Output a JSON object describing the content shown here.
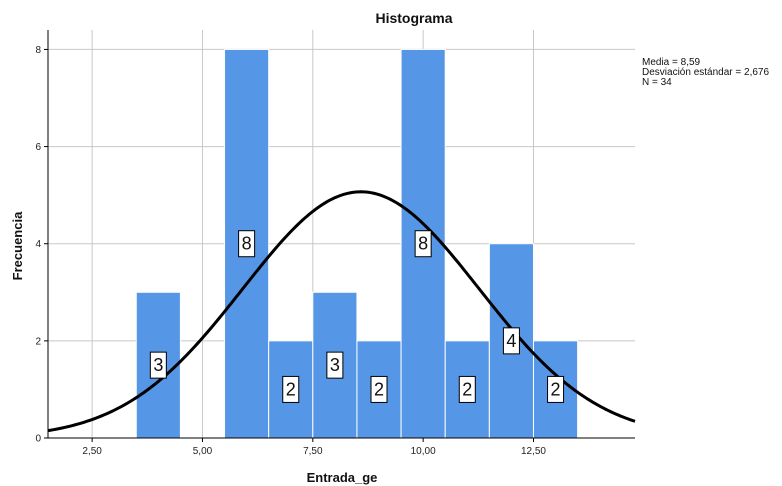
{
  "chart_data": {
    "type": "bar",
    "title": "Histograma",
    "xlabel": "Entrada_ge",
    "ylabel": "Frecuencia",
    "xlim": [
      1.5,
      14.8
    ],
    "ylim": [
      0,
      8.4
    ],
    "x_ticks": [
      {
        "value": 2.5,
        "label": "2,50"
      },
      {
        "value": 5.0,
        "label": "5,00"
      },
      {
        "value": 7.5,
        "label": "7,50"
      },
      {
        "value": 10.0,
        "label": "10,00"
      },
      {
        "value": 12.5,
        "label": "12,50"
      }
    ],
    "y_ticks": [
      {
        "value": 0,
        "label": "0"
      },
      {
        "value": 2,
        "label": "2"
      },
      {
        "value": 4,
        "label": "4"
      },
      {
        "value": 6,
        "label": "6"
      },
      {
        "value": 8,
        "label": "8"
      }
    ],
    "bins": [
      {
        "start": 3.5,
        "end": 4.5,
        "value": 3,
        "label": "3"
      },
      {
        "start": 5.5,
        "end": 6.5,
        "value": 8,
        "label": "8"
      },
      {
        "start": 6.5,
        "end": 7.5,
        "value": 2,
        "label": "2"
      },
      {
        "start": 7.5,
        "end": 8.5,
        "value": 3,
        "label": "3"
      },
      {
        "start": 8.5,
        "end": 9.5,
        "value": 2,
        "label": "2"
      },
      {
        "start": 9.5,
        "end": 10.5,
        "value": 8,
        "label": "8"
      },
      {
        "start": 10.5,
        "end": 11.5,
        "value": 2,
        "label": "2"
      },
      {
        "start": 11.5,
        "end": 12.5,
        "value": 4,
        "label": "4"
      },
      {
        "start": 12.5,
        "end": 13.5,
        "value": 2,
        "label": "2"
      }
    ],
    "normal_curve": {
      "mean": 8.59,
      "sd": 2.676,
      "n": 34,
      "bin_width": 1.0
    },
    "stats": {
      "mean": "Media = 8,59",
      "sd": "Desviación estándar = 2,676",
      "n": "N = 34"
    },
    "grid": true,
    "colors": {
      "bar": "#5596E6",
      "bar_edge": "#FFFFFF",
      "curve": "#000000",
      "grid": "#C8C8C8",
      "label_box": "#FFFFFF"
    }
  }
}
